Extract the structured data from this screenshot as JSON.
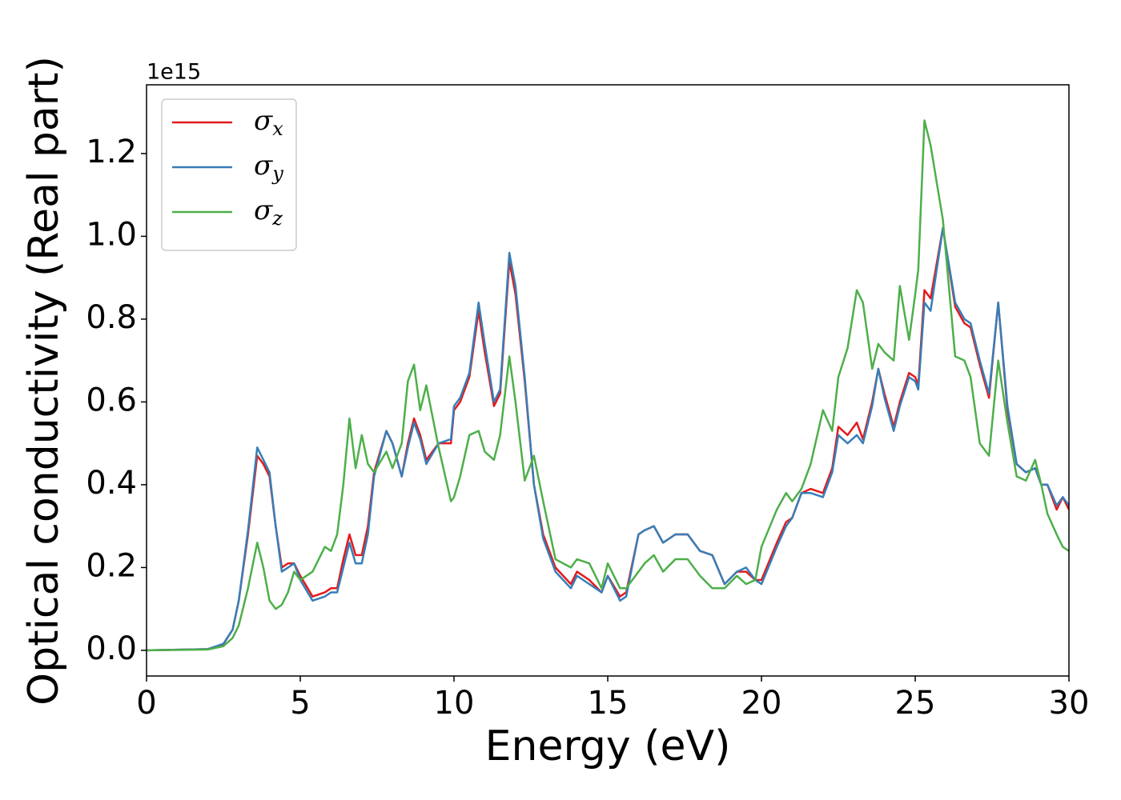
{
  "chart_data": {
    "type": "line",
    "x_label": "Energy (eV)",
    "y_label": "Optical conductivity (Real part)",
    "y_offset_label": "1e15",
    "x": [
      0,
      2,
      2.5,
      2.8,
      3.0,
      3.3,
      3.6,
      3.8,
      4.0,
      4.2,
      4.4,
      4.6,
      4.8,
      5.0,
      5.4,
      5.8,
      6.0,
      6.2,
      6.4,
      6.6,
      6.8,
      7.0,
      7.2,
      7.4,
      7.8,
      8.0,
      8.3,
      8.5,
      8.7,
      8.9,
      9.1,
      9.5,
      9.9,
      10.0,
      10.2,
      10.5,
      10.8,
      11.0,
      11.3,
      11.5,
      11.8,
      12.0,
      12.3,
      12.6,
      12.9,
      13.3,
      13.8,
      14.0,
      14.4,
      14.8,
      15.0,
      15.4,
      15.6,
      16.0,
      16.2,
      16.5,
      16.8,
      17.2,
      17.6,
      18.0,
      18.4,
      18.8,
      19.2,
      19.5,
      19.8,
      20.0,
      20.5,
      20.8,
      21.0,
      21.3,
      21.6,
      22.0,
      22.3,
      22.5,
      22.8,
      23.1,
      23.3,
      23.6,
      23.8,
      24.0,
      24.3,
      24.5,
      24.8,
      25.0,
      25.1,
      25.3,
      25.5,
      25.9,
      26.3,
      26.6,
      26.8,
      27.1,
      27.4,
      27.7,
      28.0,
      28.3,
      28.6,
      28.9,
      29.1,
      29.3,
      29.6,
      29.8,
      30
    ],
    "series": [
      {
        "name": "σx",
        "color": "#e41a1c",
        "values": [
          0,
          0.003,
          0.015,
          0.05,
          0.12,
          0.28,
          0.47,
          0.45,
          0.42,
          0.3,
          0.2,
          0.21,
          0.21,
          0.18,
          0.13,
          0.14,
          0.15,
          0.15,
          0.22,
          0.28,
          0.23,
          0.23,
          0.3,
          0.43,
          0.53,
          0.5,
          0.42,
          0.5,
          0.56,
          0.52,
          0.46,
          0.5,
          0.5,
          0.58,
          0.6,
          0.66,
          0.82,
          0.72,
          0.59,
          0.62,
          0.94,
          0.86,
          0.65,
          0.4,
          0.28,
          0.2,
          0.16,
          0.19,
          0.17,
          0.14,
          0.18,
          0.13,
          0.14,
          0.28,
          0.29,
          0.3,
          0.26,
          0.28,
          0.28,
          0.24,
          0.23,
          0.16,
          0.19,
          0.19,
          0.17,
          0.17,
          0.26,
          0.31,
          0.32,
          0.38,
          0.39,
          0.38,
          0.44,
          0.54,
          0.52,
          0.55,
          0.51,
          0.6,
          0.68,
          0.62,
          0.54,
          0.6,
          0.67,
          0.66,
          0.64,
          0.87,
          0.85,
          1.02,
          0.83,
          0.79,
          0.78,
          0.69,
          0.61,
          0.84,
          0.58,
          0.45,
          0.43,
          0.44,
          0.4,
          0.4,
          0.34,
          0.37,
          0.34
        ]
      },
      {
        "name": "σy",
        "color": "#377eb8",
        "values": [
          0,
          0.003,
          0.016,
          0.05,
          0.12,
          0.29,
          0.49,
          0.46,
          0.43,
          0.3,
          0.19,
          0.2,
          0.21,
          0.17,
          0.12,
          0.13,
          0.14,
          0.14,
          0.2,
          0.26,
          0.21,
          0.21,
          0.28,
          0.42,
          0.53,
          0.5,
          0.42,
          0.49,
          0.55,
          0.51,
          0.45,
          0.5,
          0.51,
          0.59,
          0.61,
          0.67,
          0.84,
          0.74,
          0.6,
          0.63,
          0.96,
          0.88,
          0.66,
          0.4,
          0.27,
          0.19,
          0.15,
          0.18,
          0.16,
          0.14,
          0.18,
          0.12,
          0.13,
          0.28,
          0.29,
          0.3,
          0.26,
          0.28,
          0.28,
          0.24,
          0.23,
          0.16,
          0.19,
          0.2,
          0.17,
          0.16,
          0.25,
          0.3,
          0.32,
          0.38,
          0.38,
          0.37,
          0.43,
          0.52,
          0.5,
          0.52,
          0.5,
          0.59,
          0.68,
          0.61,
          0.53,
          0.59,
          0.66,
          0.65,
          0.63,
          0.84,
          0.82,
          1.02,
          0.84,
          0.8,
          0.79,
          0.7,
          0.62,
          0.84,
          0.59,
          0.45,
          0.43,
          0.44,
          0.4,
          0.4,
          0.35,
          0.37,
          0.35
        ]
      },
      {
        "name": "σz",
        "color": "#4daf4a",
        "values": [
          0,
          0.002,
          0.01,
          0.03,
          0.06,
          0.15,
          0.26,
          0.2,
          0.12,
          0.1,
          0.11,
          0.14,
          0.19,
          0.17,
          0.19,
          0.25,
          0.24,
          0.28,
          0.4,
          0.56,
          0.44,
          0.52,
          0.45,
          0.43,
          0.48,
          0.44,
          0.5,
          0.65,
          0.69,
          0.58,
          0.64,
          0.49,
          0.36,
          0.37,
          0.42,
          0.52,
          0.53,
          0.48,
          0.46,
          0.52,
          0.71,
          0.6,
          0.41,
          0.47,
          0.36,
          0.22,
          0.2,
          0.22,
          0.21,
          0.15,
          0.21,
          0.15,
          0.15,
          0.19,
          0.21,
          0.23,
          0.19,
          0.22,
          0.22,
          0.18,
          0.15,
          0.15,
          0.18,
          0.16,
          0.17,
          0.25,
          0.34,
          0.38,
          0.36,
          0.39,
          0.45,
          0.58,
          0.53,
          0.66,
          0.73,
          0.87,
          0.84,
          0.68,
          0.74,
          0.72,
          0.7,
          0.88,
          0.75,
          0.86,
          0.92,
          1.28,
          1.22,
          1.04,
          0.71,
          0.7,
          0.66,
          0.5,
          0.47,
          0.7,
          0.55,
          0.42,
          0.41,
          0.46,
          0.4,
          0.33,
          0.28,
          0.25,
          0.24
        ]
      }
    ],
    "xlim": [
      0,
      30
    ],
    "xticks": [
      0,
      5,
      10,
      15,
      20,
      25,
      30
    ],
    "ylim": [
      -0.062,
      1.366
    ],
    "yticks": [
      {
        "value": 0,
        "label": "0.0"
      },
      {
        "value": 0.2,
        "label": "0.2"
      },
      {
        "value": 0.4,
        "label": "0.4"
      },
      {
        "value": 0.6,
        "label": "0.6"
      },
      {
        "value": 0.8,
        "label": "0.8"
      },
      {
        "value": 1.0,
        "label": "1.0"
      },
      {
        "value": 1.2,
        "label": "1.2"
      }
    ],
    "legend": "upper left",
    "grid": false
  }
}
